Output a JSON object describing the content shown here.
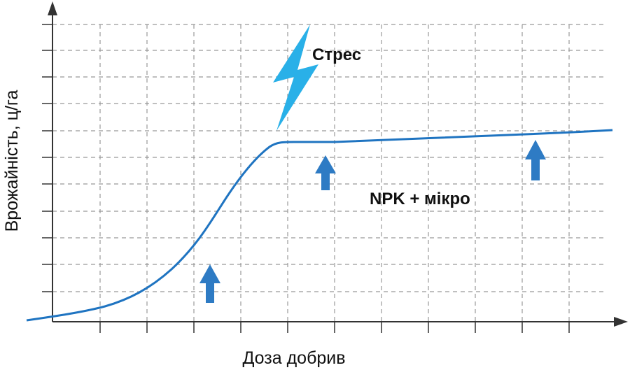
{
  "axes": {
    "y_label": "Врожайність, ц/га",
    "x_label": "Доза добрив"
  },
  "annotations": {
    "stress": "Стрес",
    "treatment": "NPK + мікро"
  }
}
